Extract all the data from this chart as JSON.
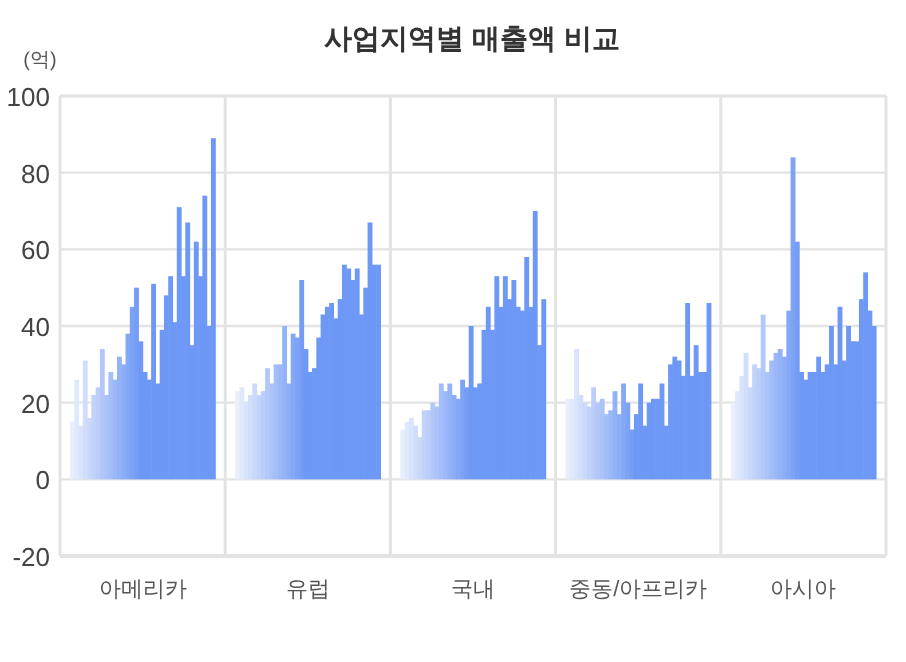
{
  "chart_data": {
    "type": "bar",
    "title": "사업지역별 매출액 비교",
    "ylabel": "(억)",
    "categories": [
      "아메리카",
      "유럽",
      "국내",
      "중동/아프리카",
      "아시아"
    ],
    "ylim": [
      -20,
      100
    ],
    "yticks": [
      -20,
      0,
      20,
      40,
      60,
      80,
      100
    ],
    "grid": "y",
    "series": [
      {
        "color": "#e8eefc",
        "values": [
          15,
          23,
          13,
          21,
          20
        ]
      },
      {
        "color": "#e0e9fc",
        "values": [
          26,
          24,
          15,
          21,
          23
        ]
      },
      {
        "color": "#d9e3fb",
        "values": [
          14,
          20,
          16,
          34,
          27
        ]
      },
      {
        "color": "#d1defb",
        "values": [
          31,
          22,
          14,
          22,
          33
        ]
      },
      {
        "color": "#cad8fa",
        "values": [
          16,
          25,
          11,
          20,
          24
        ]
      },
      {
        "color": "#c2d3fa",
        "values": [
          22,
          22,
          18,
          19,
          30
        ]
      },
      {
        "color": "#bacef9",
        "values": [
          24,
          23,
          18,
          24,
          29
        ]
      },
      {
        "color": "#b3c8f9",
        "values": [
          34,
          29,
          20,
          20,
          43
        ]
      },
      {
        "color": "#abc3f8",
        "values": [
          22,
          25,
          19,
          21,
          28
        ]
      },
      {
        "color": "#a3bef8",
        "values": [
          28,
          30,
          25,
          17,
          31
        ]
      },
      {
        "color": "#9cb8f8",
        "values": [
          26,
          30,
          23,
          18,
          33
        ]
      },
      {
        "color": "#94b3f7",
        "values": [
          32,
          40,
          25,
          23,
          34
        ]
      },
      {
        "color": "#8caef7",
        "values": [
          30,
          25,
          22,
          17,
          32
        ]
      },
      {
        "color": "#85a8f6",
        "values": [
          38,
          38,
          21,
          25,
          44
        ]
      },
      {
        "color": "#7da3f6",
        "values": [
          45,
          37,
          26,
          20,
          84
        ]
      },
      {
        "color": "#769df5",
        "values": [
          50,
          52,
          24,
          13,
          62
        ]
      },
      {
        "color": "#6e98f5",
        "values": [
          36,
          34,
          40,
          17,
          28
        ]
      },
      {
        "color": "#6e98f5",
        "values": [
          28,
          28,
          24,
          25,
          26
        ]
      },
      {
        "color": "#6e98f5",
        "values": [
          26,
          29,
          25,
          14,
          28
        ]
      },
      {
        "color": "#6e98f5",
        "values": [
          51,
          37,
          39,
          20,
          28
        ]
      },
      {
        "color": "#6e98f5",
        "values": [
          25,
          43,
          45,
          21,
          32
        ]
      },
      {
        "color": "#6e98f5",
        "values": [
          39,
          45,
          39,
          21,
          28
        ]
      },
      {
        "color": "#6e98f5",
        "values": [
          48,
          46,
          53,
          25,
          30
        ]
      },
      {
        "color": "#6e98f5",
        "values": [
          53,
          42,
          45,
          14,
          40
        ]
      },
      {
        "color": "#6e98f5",
        "values": [
          41,
          47,
          53,
          30,
          30
        ]
      },
      {
        "color": "#6e98f5",
        "values": [
          71,
          56,
          47,
          32,
          45
        ]
      },
      {
        "color": "#6e98f5",
        "values": [
          53,
          55,
          52,
          31,
          31
        ]
      },
      {
        "color": "#6e98f5",
        "values": [
          67,
          52,
          45,
          27,
          40
        ]
      },
      {
        "color": "#6e98f5",
        "values": [
          35,
          55,
          44,
          46,
          36
        ]
      },
      {
        "color": "#6e98f5",
        "values": [
          62,
          43,
          58,
          27,
          36
        ]
      },
      {
        "color": "#6e98f5",
        "values": [
          53,
          50,
          45,
          35,
          47
        ]
      },
      {
        "color": "#6e98f5",
        "values": [
          74,
          67,
          70,
          28,
          54
        ]
      },
      {
        "color": "#6e98f5",
        "values": [
          40,
          56,
          35,
          28,
          44
        ]
      },
      {
        "color": "#6e98f5",
        "values": [
          89,
          56,
          47,
          46,
          40
        ]
      }
    ]
  }
}
